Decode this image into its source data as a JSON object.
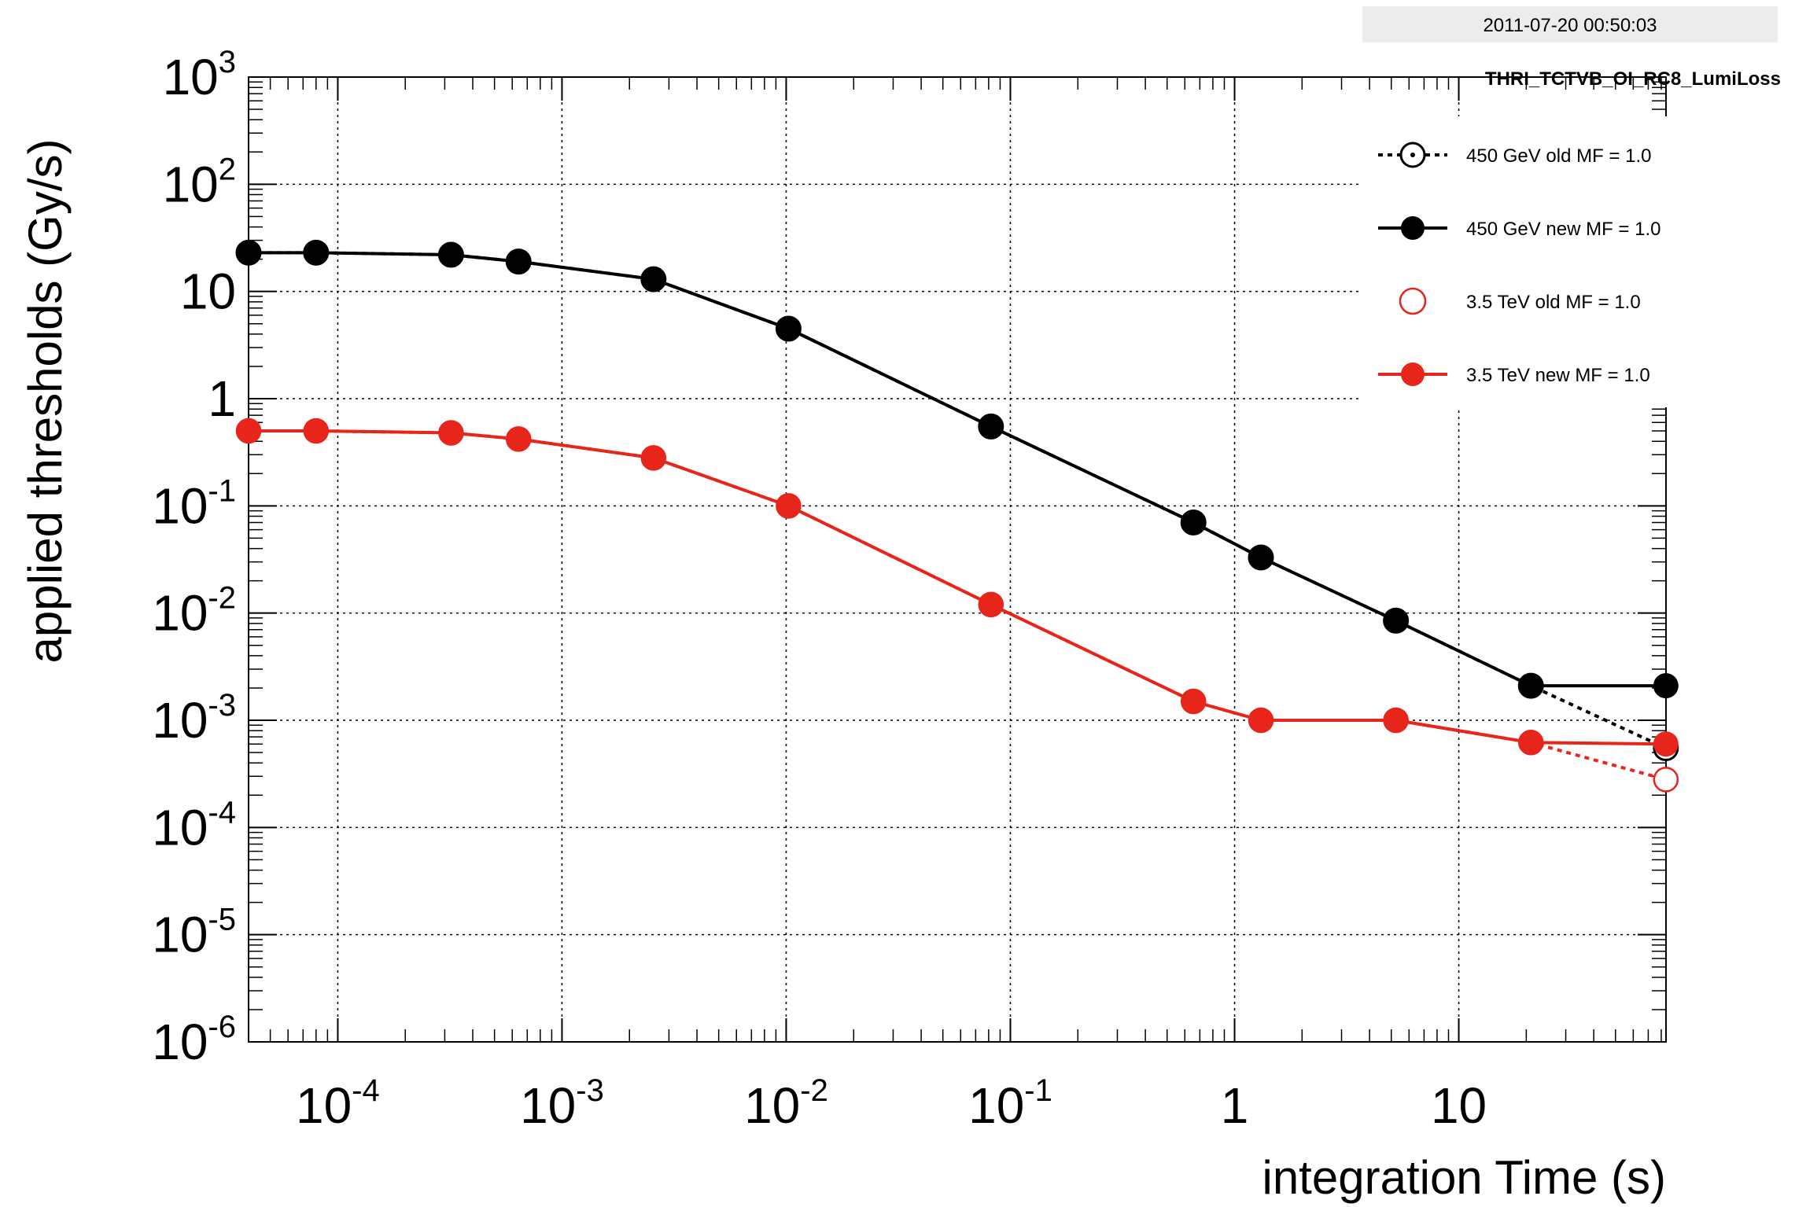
{
  "header": {
    "timestamp": "2011-07-20 00:50:03",
    "title": "THRI_TCTVB_OI_RC8_LumiLoss"
  },
  "chart_data": {
    "type": "line",
    "xlabel": "integration Time (s)",
    "ylabel": "applied thresholds  (Gy/s)",
    "xscale": "log",
    "yscale": "log",
    "xlim": [
      4e-05,
      84
    ],
    "ylim": [
      1e-06,
      1000
    ],
    "grid": true,
    "legend_position": "top-right",
    "x_ticks": [
      {
        "value": 0.0001,
        "base": "10",
        "exp": "-4"
      },
      {
        "value": 0.001,
        "base": "10",
        "exp": "-3"
      },
      {
        "value": 0.01,
        "base": "10",
        "exp": "-2"
      },
      {
        "value": 0.1,
        "base": "10",
        "exp": "-1"
      },
      {
        "value": 1,
        "base": "1",
        "exp": ""
      },
      {
        "value": 10,
        "base": "10",
        "exp": ""
      }
    ],
    "y_ticks": [
      {
        "value": 1000,
        "base": "10",
        "exp": "3"
      },
      {
        "value": 100,
        "base": "10",
        "exp": "2"
      },
      {
        "value": 10,
        "base": "10",
        "exp": ""
      },
      {
        "value": 1,
        "base": "1",
        "exp": ""
      },
      {
        "value": 0.1,
        "base": "10",
        "exp": "-1"
      },
      {
        "value": 0.01,
        "base": "10",
        "exp": "-2"
      },
      {
        "value": 0.001,
        "base": "10",
        "exp": "-3"
      },
      {
        "value": 0.0001,
        "base": "10",
        "exp": "-4"
      },
      {
        "value": 1e-05,
        "base": "10",
        "exp": "-5"
      },
      {
        "value": 1e-06,
        "base": "10",
        "exp": "-6"
      }
    ],
    "x": [
      4e-05,
      8e-05,
      0.00032,
      0.00064,
      0.00256,
      0.01024,
      0.08192,
      0.65536,
      1.31072,
      5.24288,
      20.97152,
      83.88608
    ],
    "series": [
      {
        "name": "450 GeV old MF = 1.0",
        "color": "#000000",
        "line": "dotted",
        "marker": "open-circle-dot",
        "values": [
          23,
          23,
          22,
          19,
          13,
          4.5,
          0.55,
          0.07,
          0.033,
          0.0085,
          0.0021,
          0.00055
        ]
      },
      {
        "name": "450 GeV new MF = 1.0",
        "color": "#000000",
        "line": "solid",
        "marker": "filled-circle",
        "values": [
          23,
          23,
          22,
          19,
          13,
          4.5,
          0.55,
          0.07,
          0.033,
          0.0085,
          0.0021,
          0.0021
        ]
      },
      {
        "name": "3.5 TeV old MF = 1.0",
        "color": "#e8251a",
        "line": "dotted",
        "marker": "open-circle",
        "values": [
          0.5,
          0.5,
          0.48,
          0.42,
          0.28,
          0.1,
          0.012,
          0.0015,
          0.001,
          0.001,
          0.00062,
          0.00028
        ]
      },
      {
        "name": "3.5 TeV new MF = 1.0",
        "color": "#e8251a",
        "line": "solid",
        "marker": "filled-circle",
        "values": [
          0.5,
          0.5,
          0.48,
          0.42,
          0.28,
          0.1,
          0.012,
          0.0015,
          0.001,
          0.001,
          0.00062,
          0.0006
        ]
      }
    ]
  }
}
